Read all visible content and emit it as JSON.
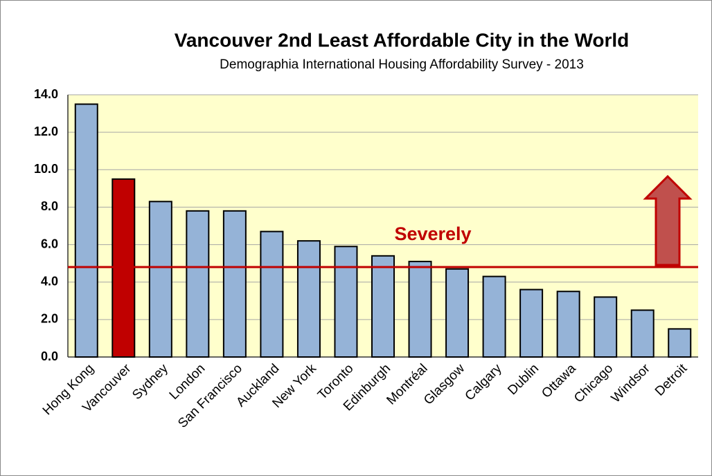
{
  "chart_data": {
    "type": "bar",
    "title": "Vancouver 2nd Least Affordable City in the World",
    "subtitle": "Demographia International Housing Affordability Survey - 2013",
    "categories": [
      "Hong Kong",
      "Vancouver",
      "Sydney",
      "London",
      "San Francisco",
      "Auckland",
      "New York",
      "Toronto",
      "Edinburgh",
      "Montréal",
      "Glasgow",
      "Calgary",
      "Dublin",
      "Ottawa",
      "Chicago",
      "Windsor",
      "Detroit"
    ],
    "values": [
      13.5,
      9.5,
      8.3,
      7.8,
      7.8,
      6.7,
      6.2,
      5.9,
      5.4,
      5.1,
      4.7,
      4.3,
      3.6,
      3.5,
      3.2,
      2.5,
      1.5
    ],
    "colors": [
      "#95b3d7",
      "#c00000",
      "#95b3d7",
      "#95b3d7",
      "#95b3d7",
      "#95b3d7",
      "#95b3d7",
      "#95b3d7",
      "#95b3d7",
      "#95b3d7",
      "#95b3d7",
      "#95b3d7",
      "#95b3d7",
      "#95b3d7",
      "#95b3d7",
      "#95b3d7",
      "#95b3d7"
    ],
    "ylim": [
      0,
      14
    ],
    "yticks": [
      {
        "value": 0,
        "label": "0.0"
      },
      {
        "value": 2,
        "label": "2.0"
      },
      {
        "value": 4,
        "label": "4.0"
      },
      {
        "value": 6,
        "label": "6.0"
      },
      {
        "value": 8,
        "label": "8.0"
      },
      {
        "value": 10,
        "label": "10.0"
      },
      {
        "value": 12,
        "label": "12.0"
      },
      {
        "value": 14,
        "label": "14.0"
      }
    ],
    "grid": true,
    "threshold": {
      "value": 4.8,
      "label": "Severely",
      "color": "#c00000"
    }
  }
}
